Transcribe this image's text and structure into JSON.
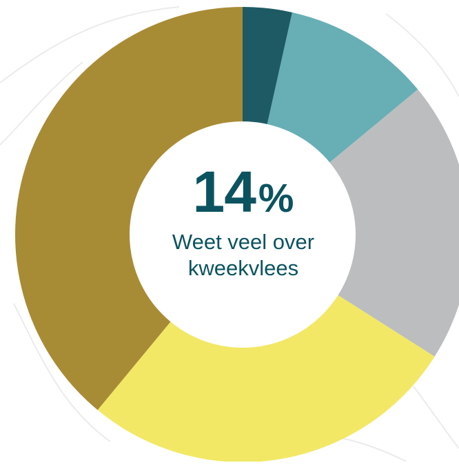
{
  "chart_data": {
    "type": "donut",
    "values": [
      3.5,
      10.5,
      20,
      27,
      39
    ],
    "colors": [
      "#1e5a64",
      "#67aeb5",
      "#bcbdbf",
      "#f2e865",
      "#a88b35"
    ],
    "center_value": "14",
    "center_unit": "%",
    "center_text_line1": "Weet veel over",
    "center_text_line2": "kweekvlees",
    "start": "top",
    "direction": "clockwise"
  },
  "colors": {
    "text": "#0b5360",
    "background_lines": "#ebebeb"
  }
}
